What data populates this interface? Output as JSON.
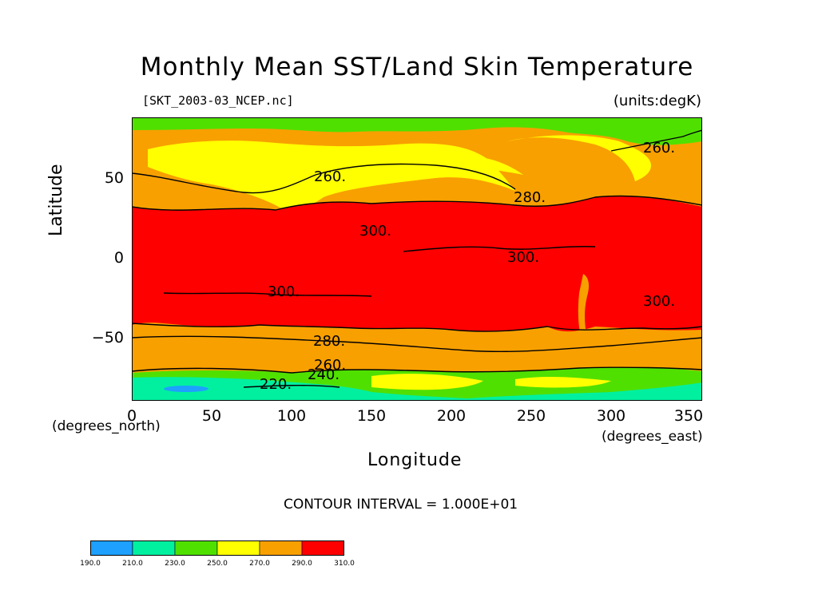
{
  "figure": {
    "title": "Monthly Mean SST/Land Skin Temperature",
    "file_label": "[SKT_2003-03_NCEP.nc]",
    "units_label": "(units:degK)",
    "y_axis": {
      "label": "Latitude",
      "ticks": [
        "50",
        "0",
        "−50"
      ]
    },
    "x_axis": {
      "label": "Longitude",
      "ticks": [
        "0",
        "50",
        "100",
        "150",
        "200",
        "250",
        "300",
        "350"
      ],
      "north_units": "(degrees_north)",
      "east_units": "(degrees_east)"
    },
    "contour_interval": "CONTOUR INTERVAL = 1.000E+01",
    "contour_labels": [
      "260.",
      "280.",
      "300.",
      "300.",
      "300.",
      "300.",
      "280.",
      "260.",
      "240.",
      "220.",
      "260."
    ]
  },
  "colorbar": {
    "labels": [
      "190.0",
      "210.0",
      "230.0",
      "250.0",
      "270.0",
      "290.0",
      "310.0"
    ],
    "colors": [
      "#1ea0ff",
      "#00f0a0",
      "#50e000",
      "#ffff00",
      "#f8a000",
      "#ff0000"
    ]
  },
  "colors": {
    "cold": "#1ea0ff",
    "cool": "#00f0a0",
    "green": "#50e000",
    "yellow": "#ffff00",
    "orange": "#f8a000",
    "red": "#ff0000"
  }
}
